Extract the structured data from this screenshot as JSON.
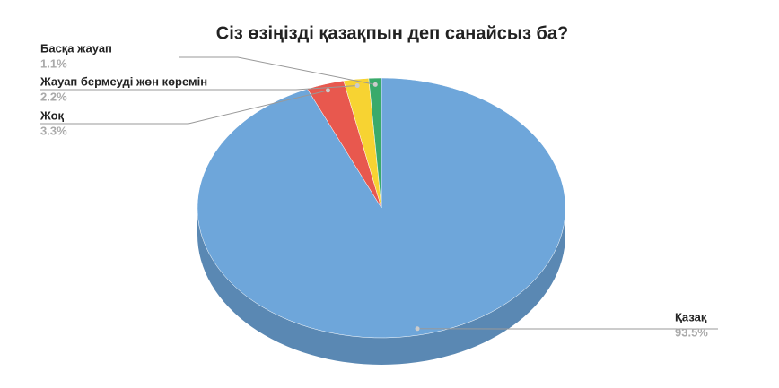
{
  "chart_data": {
    "type": "pie",
    "title": "Сіз өзіңізді қазақпын деп санайсыз ба?",
    "categories": [
      "Қазақ",
      "Жоқ",
      "Жауап бермеуді жөн көремін",
      "Басқа жауап"
    ],
    "values": [
      93.5,
      3.3,
      2.2,
      1.1
    ],
    "value_labels": [
      "93.5%",
      "3.3%",
      "2.2%",
      "1.1%"
    ],
    "colors": [
      "#6ea6da",
      "#e8584e",
      "#f7d332",
      "#3aaa6b"
    ]
  }
}
